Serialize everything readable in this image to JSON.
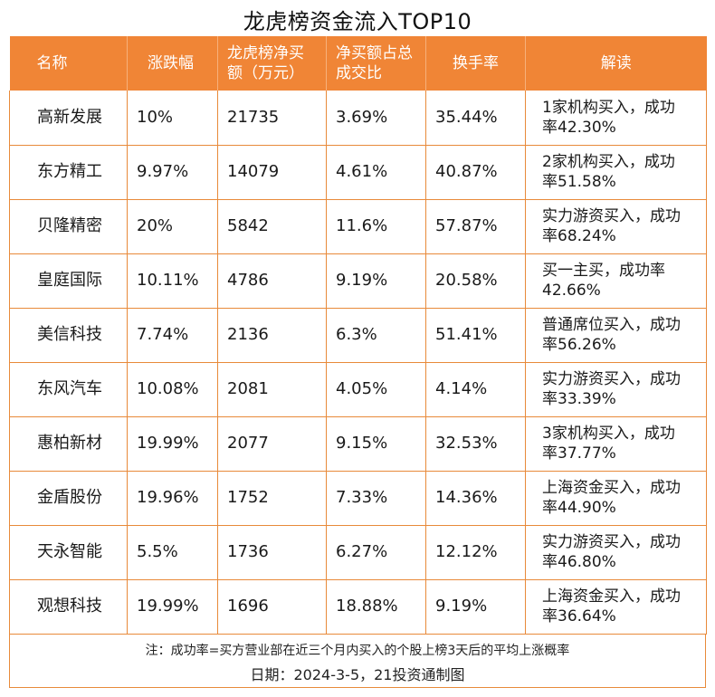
{
  "title": "龙虎榜资金流入TOP10",
  "headers": [
    "名称",
    "涨跌幅",
    "龙虎榜净买额（万元）",
    "净买额占总成交比",
    "换手率",
    "解读"
  ],
  "rows": [
    {
      "name": "高新发展",
      "change": "10%",
      "net_buy": "21735",
      "ratio": "3.69%",
      "turnover": "35.44%",
      "note": "1家机构买入，成功率42.30%"
    },
    {
      "name": "东方精工",
      "change": "9.97%",
      "net_buy": "14079",
      "ratio": "4.61%",
      "turnover": "40.87%",
      "note": "2家机构买入，成功率51.58%"
    },
    {
      "name": "贝隆精密",
      "change": "20%",
      "net_buy": "5842",
      "ratio": "11.6%",
      "turnover": "57.87%",
      "note": "实力游资买入，成功率68.24%"
    },
    {
      "name": "皇庭国际",
      "change": "10.11%",
      "net_buy": "4786",
      "ratio": "9.19%",
      "turnover": "20.58%",
      "note": "买一主买，成功率42.66%"
    },
    {
      "name": "美信科技",
      "change": "7.74%",
      "net_buy": "2136",
      "ratio": "6.3%",
      "turnover": "51.41%",
      "note": "普通席位买入，成功率56.26%"
    },
    {
      "name": "东风汽车",
      "change": "10.08%",
      "net_buy": "2081",
      "ratio": "4.05%",
      "turnover": "4.14%",
      "note": "实力游资买入，成功率33.39%"
    },
    {
      "name": "惠柏新材",
      "change": "19.99%",
      "net_buy": "2077",
      "ratio": "9.15%",
      "turnover": "32.53%",
      "note": "3家机构买入，成功率37.77%"
    },
    {
      "name": "金盾股份",
      "change": "19.96%",
      "net_buy": "1752",
      "ratio": "7.33%",
      "turnover": "14.36%",
      "note": "上海资金买入，成功率44.90%"
    },
    {
      "name": "天永智能",
      "change": "5.5%",
      "net_buy": "1736",
      "ratio": "6.27%",
      "turnover": "12.12%",
      "note": "实力游资买入，成功率46.80%"
    },
    {
      "name": "观想科技",
      "change": "19.99%",
      "net_buy": "1696",
      "ratio": "18.88%",
      "turnover": "9.19%",
      "note": "上海资金买入，成功率36.64%"
    }
  ],
  "footer": {
    "note": "注：成功率=买方营业部在近三个月内买入的个股上榜3天后的平均上涨概率",
    "date": "日期：2024-3-5，21投资通制图"
  },
  "colors": {
    "header_bg": "#f08536",
    "border": "#e88a3a"
  }
}
